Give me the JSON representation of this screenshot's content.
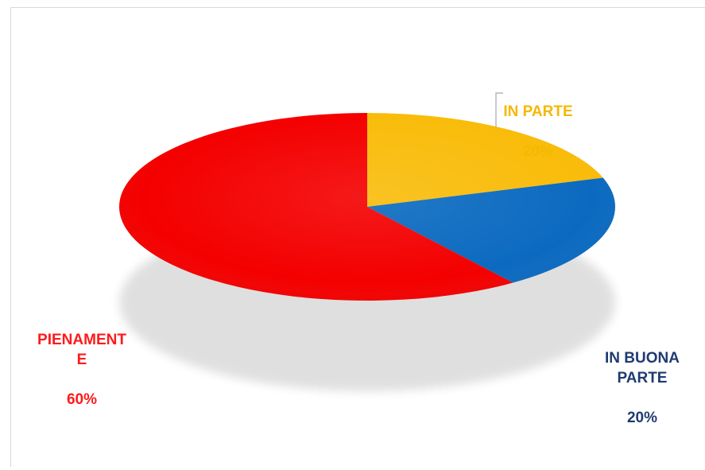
{
  "chart_data": {
    "type": "pie",
    "style": "3d",
    "start_angle_deg": 90,
    "direction": "clockwise",
    "legend": "none",
    "slices": [
      {
        "label": "IN PARTE",
        "value": 20,
        "value_label": "20%",
        "color": "#f9bc0a",
        "side_color": "#c48f00",
        "label_color": "#f5b800"
      },
      {
        "label": "IN BUONA PARTE",
        "value": 20,
        "value_label": "20%",
        "color": "#0b6ac0",
        "side_color": "#0a3f7a",
        "label_color": "#1f3b70"
      },
      {
        "label": "PIENAMENTE",
        "value": 60,
        "value_label": "60%",
        "color": "#f40000",
        "side_color": "#9e0000",
        "label_color": "#ff1a1a"
      }
    ],
    "label_text": {
      "in_parte": "IN PARTE",
      "in_buona_parte": "IN BUONA\nPARTE",
      "pienamente": "PIENAMENT\nE"
    }
  }
}
